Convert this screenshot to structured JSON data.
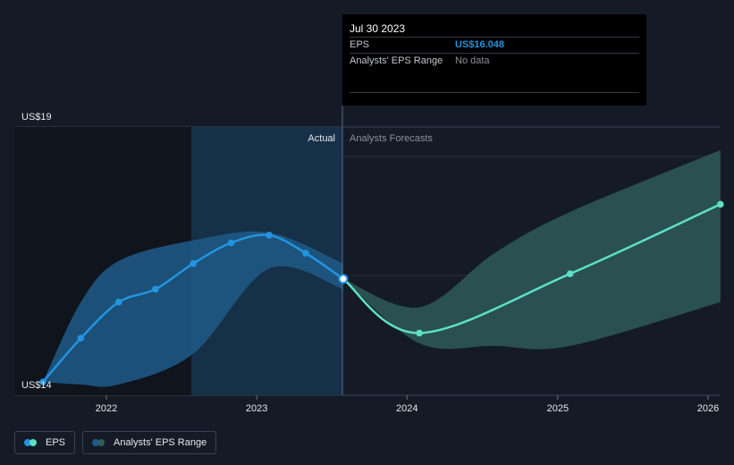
{
  "tooltip": {
    "date": "Jul 30 2023",
    "eps_label": "EPS",
    "eps_value": "US$16.048",
    "range_label": "Analysts' EPS Range",
    "range_value": "No data"
  },
  "chart_data": {
    "type": "line",
    "y_axis": {
      "min": 14,
      "max": 19,
      "top_label": "US$19",
      "bottom_label": "US$14"
    },
    "x_ticks": [
      "2022",
      "2023",
      "2024",
      "2025",
      "2026"
    ],
    "region_labels": {
      "actual": "Actual",
      "forecast": "Analysts Forecasts"
    },
    "series": [
      {
        "name": "EPS",
        "color": "#2394df",
        "points": [
          [
            "2021-07-31",
            14.05
          ],
          [
            "2021-10-31",
            14.9
          ],
          [
            "2022-01-31",
            15.6
          ],
          [
            "2022-04-30",
            15.85
          ],
          [
            "2022-07-31",
            16.35
          ],
          [
            "2022-10-31",
            16.75
          ],
          [
            "2023-01-31",
            16.9
          ],
          [
            "2023-04-30",
            16.55
          ],
          [
            "2023-07-30",
            16.05
          ]
        ]
      },
      {
        "name": "EPS",
        "color": "#5ce0c6",
        "points": [
          [
            "2023-07-30",
            16.05
          ],
          [
            "2024-01-31",
            15.0
          ],
          [
            "2025-01-31",
            16.15
          ],
          [
            "2026-01-31",
            17.5
          ]
        ]
      }
    ],
    "ranges": [
      {
        "name": "Analysts' EPS Range",
        "color": "#2394df",
        "points": [
          [
            "2021-07-31",
            14.05,
            14.05
          ],
          [
            "2021-10-31",
            14.0,
            15.6
          ],
          [
            "2022-01-31",
            14.0,
            16.4
          ],
          [
            "2022-07-31",
            14.6,
            16.8
          ],
          [
            "2023-01-31",
            16.25,
            16.95
          ],
          [
            "2023-07-30",
            15.85,
            16.35
          ]
        ]
      },
      {
        "name": "Analysts' EPS Range",
        "color": "#5ce0c6",
        "points": [
          [
            "2023-07-30",
            16.05,
            16.05
          ],
          [
            "2024-01-31",
            14.8,
            15.5
          ],
          [
            "2024-07-31",
            14.75,
            16.55
          ],
          [
            "2025-01-31",
            14.75,
            17.35
          ],
          [
            "2026-01-31",
            15.6,
            18.55
          ]
        ]
      }
    ]
  },
  "legend": {
    "eps": "EPS",
    "range": "Analysts' EPS Range"
  },
  "colors": {
    "background": "#151b26",
    "actual_line": "#2394df",
    "forecast_line": "#5ce0c6",
    "forecast_band": "#2f5e5c"
  }
}
